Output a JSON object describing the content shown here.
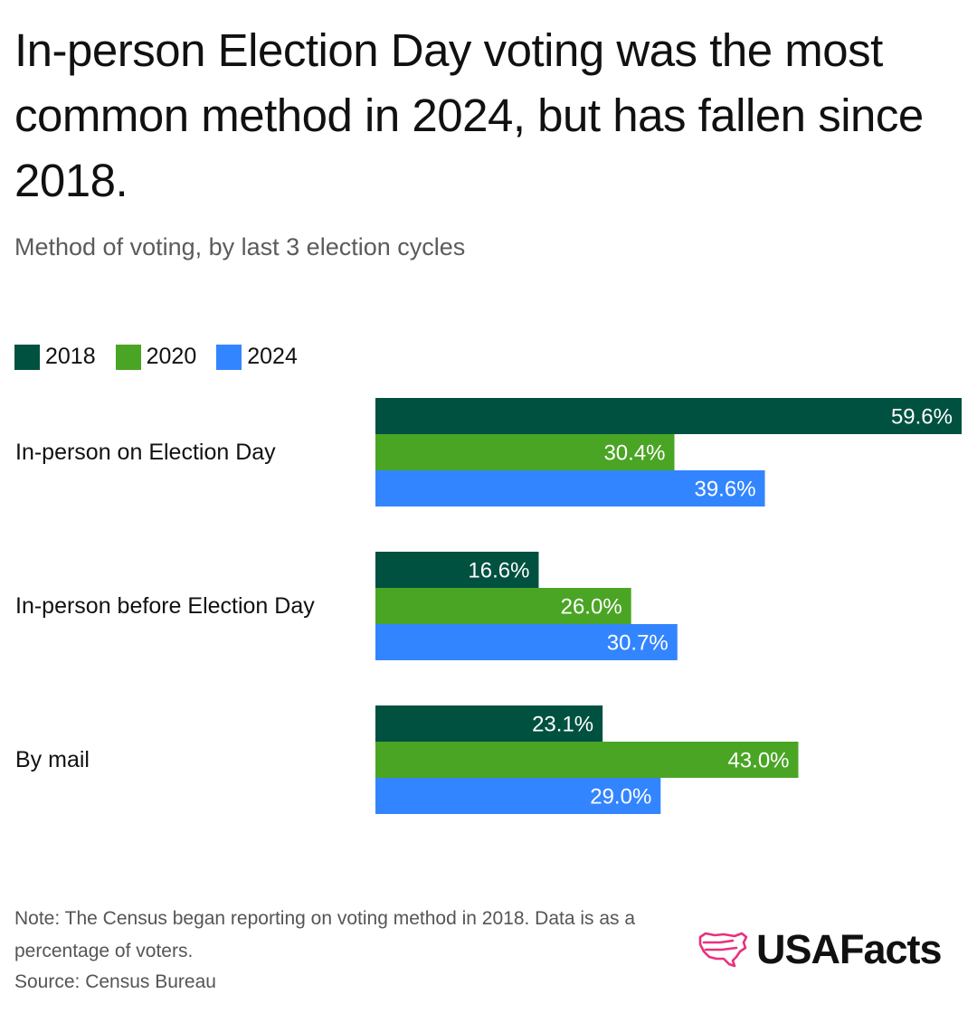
{
  "chart_data": {
    "type": "bar",
    "orientation": "horizontal",
    "title": "In-person Election Day voting was the most common method in 2024, but has fallen since 2018.",
    "subtitle": "Method of voting, by last 3 election cycles",
    "categories": [
      "In-person on Election Day",
      "In-person before Election Day",
      "By mail"
    ],
    "series": [
      {
        "name": "2018",
        "color": "#005140",
        "values": [
          59.6,
          16.6,
          23.1
        ],
        "labels": [
          "59.6%",
          "16.6%",
          "23.1%"
        ]
      },
      {
        "name": "2020",
        "color": "#4aa524",
        "values": [
          30.4,
          26.0,
          43.0
        ],
        "labels": [
          "30.4%",
          "26.0%",
          "43.0%"
        ]
      },
      {
        "name": "2024",
        "color": "#3385ff",
        "values": [
          39.6,
          30.7,
          29.0
        ],
        "labels": [
          "39.6%",
          "30.7%",
          "29.0%"
        ]
      }
    ],
    "xlim": [
      0,
      59.6
    ],
    "xlabel": "",
    "ylabel": "",
    "grid": false,
    "legend": "top-left"
  },
  "note": "Note: The Census began reporting on voting method in 2018. Data is as a percentage of voters.",
  "source": "Source: Census Bureau",
  "brand": {
    "name": "USAFacts",
    "logo_icon": "usa-map-icon",
    "logo_color": "#e8317c"
  }
}
